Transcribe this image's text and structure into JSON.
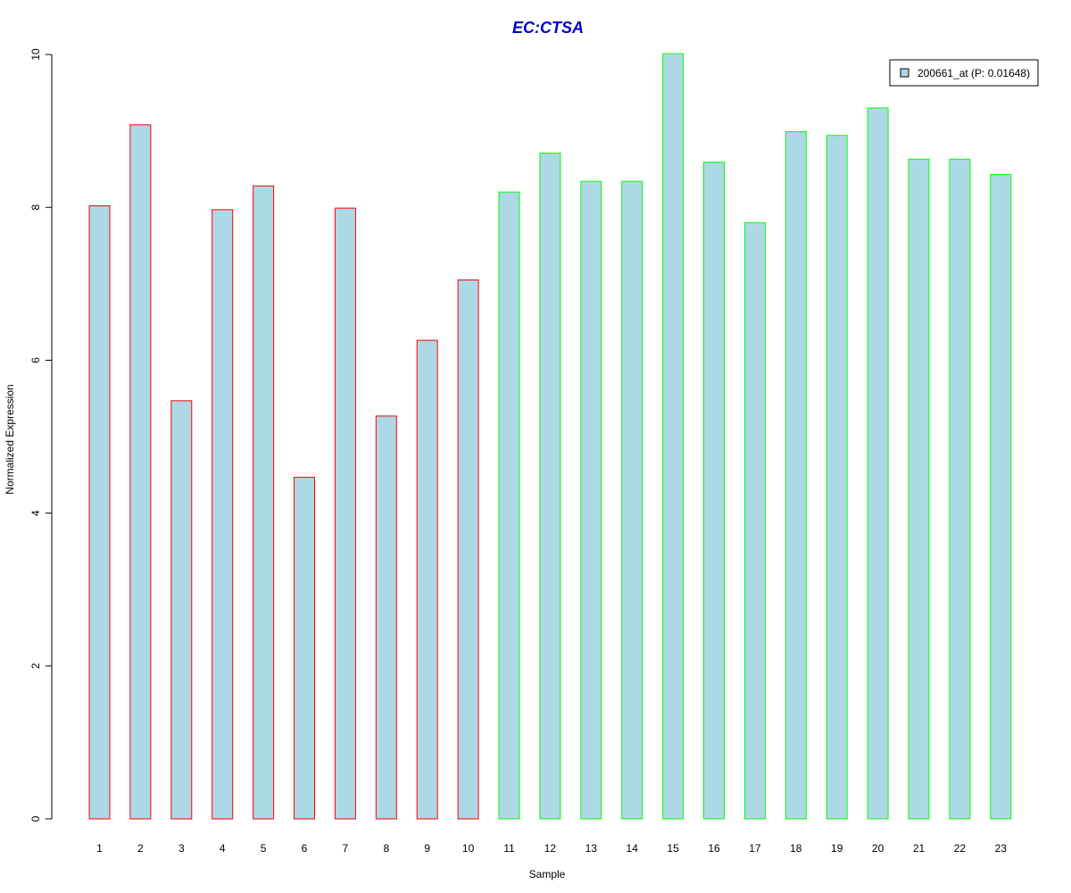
{
  "chart_data": {
    "type": "bar",
    "title": "EC:CTSA",
    "xlabel": "Sample",
    "ylabel": "Normalized Expression",
    "categories": [
      "1",
      "2",
      "3",
      "4",
      "5",
      "6",
      "7",
      "8",
      "9",
      "10",
      "11",
      "12",
      "13",
      "14",
      "15",
      "16",
      "17",
      "18",
      "19",
      "20",
      "21",
      "22",
      "23"
    ],
    "series": [
      {
        "name": "200661_at (P: 0.01648)",
        "values": [
          8.02,
          9.08,
          5.47,
          7.97,
          8.28,
          4.47,
          7.99,
          5.27,
          6.26,
          7.05,
          8.2,
          8.71,
          8.34,
          8.34,
          10.01,
          8.59,
          7.8,
          8.99,
          8.94,
          9.3,
          8.63,
          8.63,
          8.43
        ]
      }
    ],
    "group_border_colors": [
      "#ff0000",
      "#ff0000",
      "#ff0000",
      "#ff0000",
      "#ff0000",
      "#ff0000",
      "#ff0000",
      "#ff0000",
      "#ff0000",
      "#ff0000",
      "#00ff00",
      "#00ff00",
      "#00ff00",
      "#00ff00",
      "#00ff00",
      "#00ff00",
      "#00ff00",
      "#00ff00",
      "#00ff00",
      "#00ff00",
      "#00ff00",
      "#00ff00",
      "#00ff00"
    ],
    "ylim": [
      0,
      10
    ],
    "yticks": [
      0,
      2,
      4,
      6,
      8,
      10
    ],
    "grid": false,
    "legend_position": "top-right",
    "colors": {
      "bar_fill": "#add8e6",
      "title": "#0000cd",
      "axis": "#000000"
    }
  }
}
